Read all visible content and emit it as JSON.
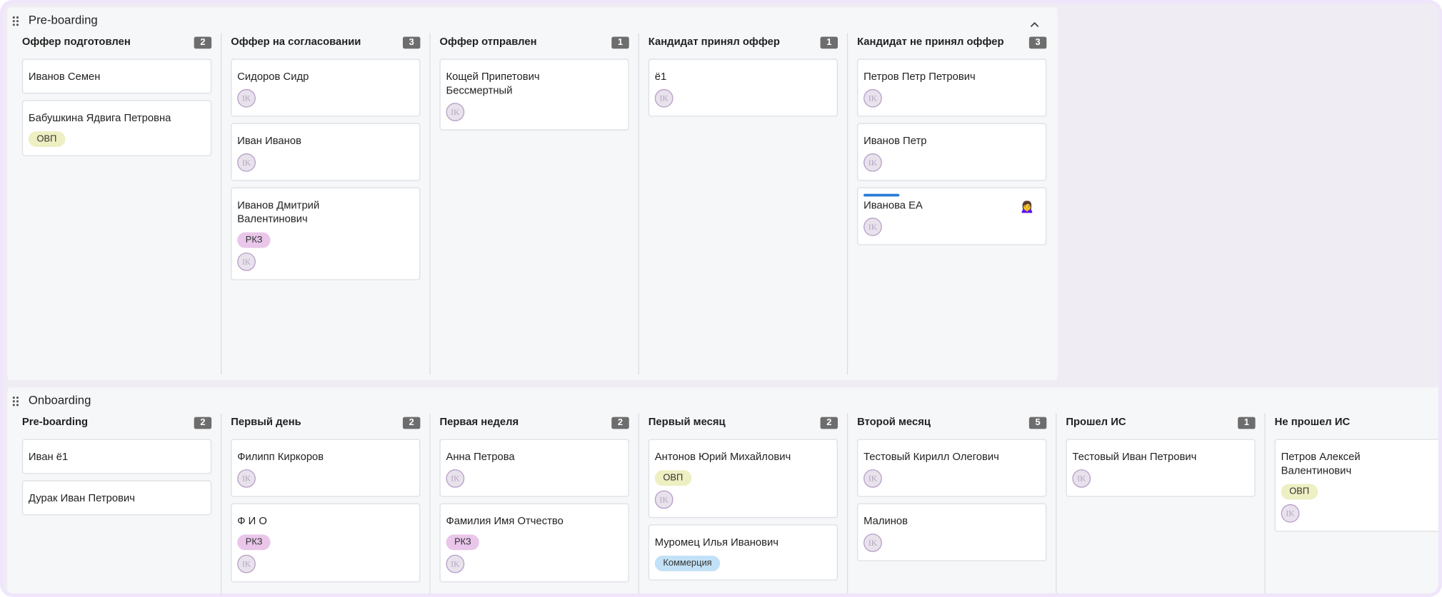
{
  "boards": [
    {
      "title": "Pre-boarding",
      "collapsible": true,
      "columns": [
        {
          "title": "Оффер подготовлен",
          "count": "2",
          "cards": [
            {
              "name": "Иванов Семен"
            },
            {
              "name": "Бабушкина Ядвига Петровна",
              "tags": [
                {
                  "text": "ОВП",
                  "color": "#eeefc2"
                }
              ]
            }
          ]
        },
        {
          "title": "Оффер на согласовании",
          "count": "3",
          "cards": [
            {
              "name": "Сидоров Сидр",
              "avatar": "IK"
            },
            {
              "name": "Иван Иванов",
              "avatar": "IK"
            },
            {
              "name": "Иванов Дмитрий Валентинович",
              "tags": [
                {
                  "text": "РКЗ",
                  "color": "#e9c6ea"
                }
              ],
              "avatar": "IK"
            }
          ]
        },
        {
          "title": "Оффер отправлен",
          "count": "1",
          "cards": [
            {
              "name": "Кощей Припетович Бессмертный",
              "avatar": "IK"
            }
          ]
        },
        {
          "title": "Кандидат принял оффер",
          "count": "1",
          "cards": [
            {
              "name": "ё1",
              "avatar": "IK"
            }
          ]
        },
        {
          "title": "Кандидат не принял оффер",
          "count": "3",
          "cards": [
            {
              "name": "Петров Петр Петрович",
              "avatar": "IK"
            },
            {
              "name": "Иванов Петр",
              "avatar": "IK"
            },
            {
              "name": "Иванова ЕА",
              "avatar": "IK",
              "emoji": "🙍‍♀️",
              "highlighted": true
            }
          ]
        }
      ]
    },
    {
      "title": "Onboarding",
      "collapsible": false,
      "columns": [
        {
          "title": "Pre-boarding",
          "count": "2",
          "cards": [
            {
              "name": "Иван ё1"
            },
            {
              "name": "Дурак Иван Петрович"
            }
          ]
        },
        {
          "title": "Первый день",
          "count": "2",
          "cards": [
            {
              "name": "Филипп Киркоров",
              "avatar": "IK"
            },
            {
              "name": "Ф И О",
              "tags": [
                {
                  "text": "РКЗ",
                  "color": "#e9c6ea"
                }
              ],
              "avatar": "IK"
            }
          ]
        },
        {
          "title": "Первая неделя",
          "count": "2",
          "cards": [
            {
              "name": "Анна Петрова",
              "avatar": "IK"
            },
            {
              "name": "Фамилия Имя Отчество",
              "tags": [
                {
                  "text": "РКЗ",
                  "color": "#e9c6ea"
                }
              ],
              "avatar": "IK"
            }
          ]
        },
        {
          "title": "Первый месяц",
          "count": "2",
          "cards": [
            {
              "name": "Антонов Юрий Михайлович",
              "tags": [
                {
                  "text": "ОВП",
                  "color": "#eeefc2"
                }
              ],
              "avatar": "IK"
            },
            {
              "name": "Муромец Илья Иванович",
              "tags": [
                {
                  "text": "Коммерция",
                  "color": "#c3e1f6"
                }
              ]
            }
          ]
        },
        {
          "title": "Второй месяц",
          "count": "5",
          "cards": [
            {
              "name": "Тестовый Кирилл Олегович",
              "avatar": "IK"
            },
            {
              "name": "Малинов",
              "avatar": "IK"
            }
          ]
        },
        {
          "title": "Прошел ИС",
          "count": "1",
          "cards": [
            {
              "name": "Тестовый Иван Петрович",
              "avatar": "IK"
            }
          ]
        },
        {
          "title": "Не прошел ИС",
          "cards": [
            {
              "name": "Петров Алексей Валентинович",
              "tags": [
                {
                  "text": "ОВП",
                  "color": "#eeefc2"
                }
              ],
              "avatar": "IK"
            }
          ]
        }
      ]
    }
  ]
}
